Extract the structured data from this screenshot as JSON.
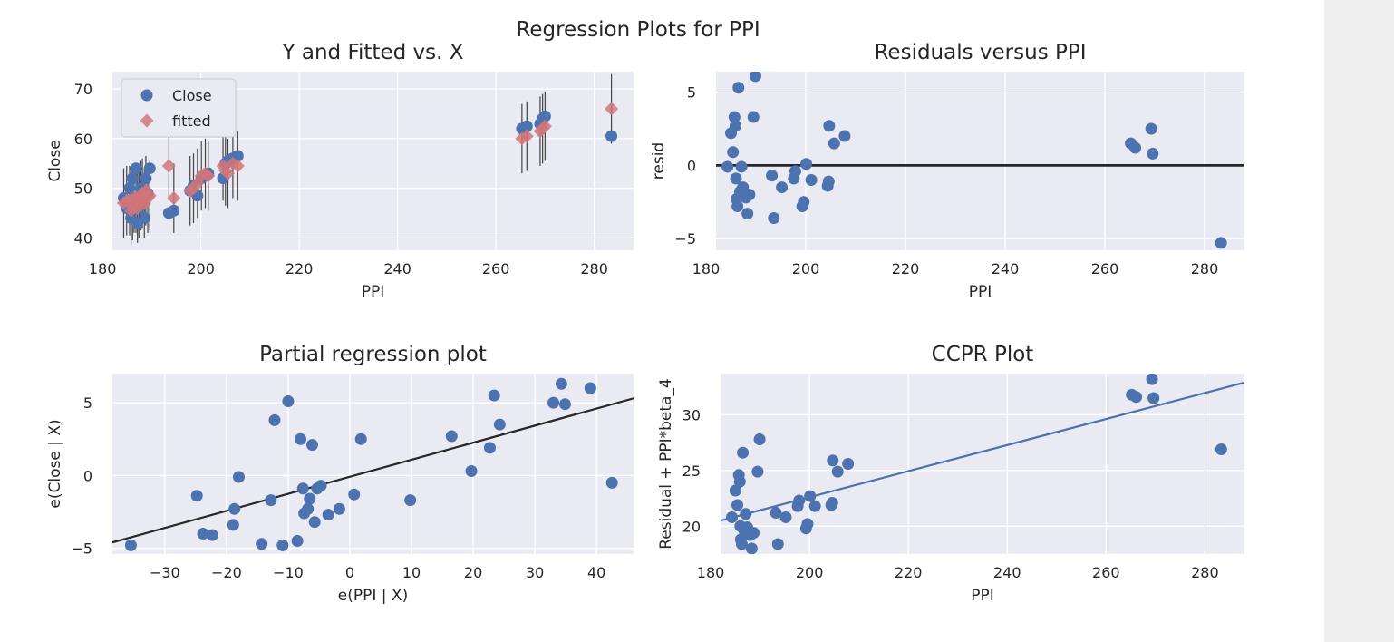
{
  "figure": {
    "suptitle": "Regression Plots for PPI"
  },
  "colors": {
    "blue": "#4c72b0",
    "red": "#dd8452",
    "fitted": "#d0757a",
    "bg": "#eaeaf2",
    "line": "#262626"
  },
  "chart_data": [
    {
      "id": "p1",
      "type": "scatter",
      "title": "Y and Fitted vs. X",
      "xlabel": "PPI",
      "ylabel": "Close",
      "xlim": [
        182,
        288
      ],
      "ylim": [
        37.5,
        73.5
      ],
      "xticks": [
        180,
        200,
        220,
        240,
        260,
        280
      ],
      "yticks": [
        40,
        50,
        60,
        70
      ],
      "legend": {
        "position": "top-left",
        "entries": [
          "Close",
          "fitted"
        ]
      },
      "series": [
        {
          "name": "Close",
          "marker": "circle",
          "points": [
            [
              184.3,
              48
            ],
            [
              184.9,
              46
            ],
            [
              185.5,
              50
            ],
            [
              185.8,
              44
            ],
            [
              186.1,
              52
            ],
            [
              186.4,
              48
            ],
            [
              186.8,
              54
            ],
            [
              187.1,
              43
            ],
            [
              187.4,
              46
            ],
            [
              187.8,
              50
            ],
            [
              188.1,
              48
            ],
            [
              188.5,
              44
            ],
            [
              188.8,
              52
            ],
            [
              189.2,
              49
            ],
            [
              189.6,
              54
            ],
            [
              193.5,
              45
            ],
            [
              194.5,
              45.5
            ],
            [
              197.8,
              49.5
            ],
            [
              198.5,
              50.5
            ],
            [
              199.3,
              48.5
            ],
            [
              200.1,
              52
            ],
            [
              200.9,
              52.5
            ],
            [
              201.5,
              53
            ],
            [
              204.5,
              52
            ],
            [
              205.0,
              55
            ],
            [
              205.5,
              55.5
            ],
            [
              206.5,
              56
            ],
            [
              207.5,
              56.5
            ],
            [
              265.3,
              62
            ],
            [
              266.3,
              62.5
            ],
            [
              269.0,
              63
            ],
            [
              269.5,
              64
            ],
            [
              270.0,
              64.5
            ],
            [
              283.5,
              60.5
            ]
          ]
        },
        {
          "name": "fitted",
          "marker": "diamond",
          "points": [
            [
              184.3,
              47
            ],
            [
              184.9,
              47.5
            ],
            [
              185.5,
              47.5
            ],
            [
              185.8,
              45.5
            ],
            [
              186.1,
              46.5
            ],
            [
              186.4,
              48
            ],
            [
              186.8,
              48
            ],
            [
              187.1,
              46
            ],
            [
              187.4,
              47
            ],
            [
              187.8,
              48.5
            ],
            [
              188.1,
              49
            ],
            [
              188.5,
              47
            ],
            [
              188.8,
              49.5
            ],
            [
              189.2,
              48
            ],
            [
              189.6,
              48.5
            ],
            [
              193.5,
              54.5
            ],
            [
              194.5,
              48
            ],
            [
              197.8,
              49.5
            ],
            [
              198.5,
              50
            ],
            [
              199.3,
              51
            ],
            [
              200.1,
              52.5
            ],
            [
              200.9,
              53
            ],
            [
              201.5,
              52.5
            ],
            [
              204.5,
              54.5
            ],
            [
              205.0,
              53.5
            ],
            [
              205.5,
              53
            ],
            [
              206.5,
              55
            ],
            [
              207.5,
              54.5
            ],
            [
              265.3,
              60
            ],
            [
              266.3,
              60.5
            ],
            [
              269.0,
              61.5
            ],
            [
              269.5,
              62
            ],
            [
              270.0,
              62.5
            ],
            [
              283.5,
              66
            ]
          ]
        }
      ]
    },
    {
      "id": "p2",
      "type": "scatter",
      "title": "Residuals versus PPI",
      "xlabel": "PPI",
      "ylabel": "resid",
      "xlim": [
        182,
        288
      ],
      "ylim": [
        -5.8,
        6.4
      ],
      "xticks": [
        180,
        200,
        220,
        240,
        260,
        280
      ],
      "yticks": [
        -5,
        0,
        5
      ],
      "hline": 0,
      "points": [
        [
          184.3,
          -0.1
        ],
        [
          185.0,
          2.2
        ],
        [
          185.4,
          0.9
        ],
        [
          185.7,
          3.3
        ],
        [
          185.9,
          2.7
        ],
        [
          186.0,
          -0.9
        ],
        [
          186.1,
          -2.3
        ],
        [
          186.3,
          -2.8
        ],
        [
          186.5,
          5.3
        ],
        [
          186.8,
          -1.8
        ],
        [
          187.1,
          -0.1
        ],
        [
          187.4,
          -1.5
        ],
        [
          187.7,
          -1.9
        ],
        [
          188.0,
          -2.2
        ],
        [
          188.3,
          -3.3
        ],
        [
          188.7,
          -2.0
        ],
        [
          189.5,
          3.3
        ],
        [
          189.9,
          6.1
        ],
        [
          193.2,
          -0.7
        ],
        [
          193.6,
          -3.6
        ],
        [
          195.2,
          -1.5
        ],
        [
          197.6,
          -0.9
        ],
        [
          197.9,
          -0.4
        ],
        [
          199.3,
          -2.8
        ],
        [
          199.6,
          -2.5
        ],
        [
          200.1,
          0.1
        ],
        [
          201.1,
          -1.0
        ],
        [
          204.4,
          -1.4
        ],
        [
          204.6,
          -1.1
        ],
        [
          204.7,
          2.7
        ],
        [
          205.7,
          1.5
        ],
        [
          207.8,
          2.0
        ],
        [
          265.2,
          1.5
        ],
        [
          266.1,
          1.2
        ],
        [
          269.3,
          2.5
        ],
        [
          269.6,
          0.8
        ],
        [
          283.3,
          -5.3
        ]
      ]
    },
    {
      "id": "p3",
      "type": "scatter",
      "title": "Partial regression plot",
      "xlabel": "e(PPI | X)",
      "ylabel": "e(Close | X)",
      "xlim": [
        -38.5,
        46
      ],
      "ylim": [
        -5.4,
        7
      ],
      "xticks": [
        -30,
        -20,
        -10,
        0,
        10,
        20,
        30,
        40
      ],
      "yticks": [
        -5,
        0,
        5
      ],
      "fit_line": {
        "x": [
          -38.5,
          46
        ],
        "y": [
          -4.6,
          5.3
        ]
      },
      "points": [
        [
          -35.5,
          -4.8
        ],
        [
          -24.8,
          -1.4
        ],
        [
          -23.8,
          -4.0
        ],
        [
          -22.3,
          -4.1
        ],
        [
          -18.9,
          -3.4
        ],
        [
          -18.7,
          -2.3
        ],
        [
          -18.0,
          -0.1
        ],
        [
          -14.3,
          -4.7
        ],
        [
          -12.8,
          -1.7
        ],
        [
          -12.2,
          3.8
        ],
        [
          -10.9,
          -4.8
        ],
        [
          -10.0,
          5.1
        ],
        [
          -8.5,
          -4.5
        ],
        [
          -8.0,
          2.5
        ],
        [
          -7.6,
          -0.9
        ],
        [
          -7.4,
          -2.6
        ],
        [
          -6.8,
          -2.3
        ],
        [
          -6.5,
          -1.6
        ],
        [
          -6.1,
          2.1
        ],
        [
          -5.7,
          -3.2
        ],
        [
          -5.3,
          -0.9
        ],
        [
          -4.7,
          -0.7
        ],
        [
          -3.5,
          -2.7
        ],
        [
          -1.7,
          -2.3
        ],
        [
          0.7,
          -1.3
        ],
        [
          1.8,
          2.5
        ],
        [
          9.8,
          -1.7
        ],
        [
          16.5,
          2.7
        ],
        [
          19.7,
          0.3
        ],
        [
          22.7,
          1.9
        ],
        [
          23.4,
          5.5
        ],
        [
          24.3,
          3.5
        ],
        [
          33.0,
          5.0
        ],
        [
          34.3,
          6.3
        ],
        [
          34.9,
          4.9
        ],
        [
          39.0,
          6.0
        ],
        [
          42.5,
          -0.5
        ]
      ]
    },
    {
      "id": "p4",
      "type": "scatter",
      "title": "CCPR Plot",
      "xlabel": "PPI",
      "ylabel": "Residual + PPI*beta_4",
      "xlim": [
        182,
        288
      ],
      "ylim": [
        17.5,
        33.7
      ],
      "xticks": [
        180,
        200,
        220,
        240,
        260,
        280
      ],
      "yticks": [
        20,
        25,
        30
      ],
      "fit_line": {
        "x": [
          182,
          288
        ],
        "y": [
          20.5,
          32.9
        ]
      },
      "points": [
        [
          184.3,
          20.8
        ],
        [
          185.0,
          23.2
        ],
        [
          185.4,
          21.9
        ],
        [
          185.7,
          24.6
        ],
        [
          185.9,
          24.0
        ],
        [
          186.0,
          20.0
        ],
        [
          186.1,
          18.8
        ],
        [
          186.3,
          18.4
        ],
        [
          186.5,
          26.6
        ],
        [
          186.8,
          19.6
        ],
        [
          187.1,
          21.1
        ],
        [
          187.4,
          19.9
        ],
        [
          187.7,
          19.5
        ],
        [
          188.0,
          19.2
        ],
        [
          188.3,
          18.0
        ],
        [
          188.7,
          19.4
        ],
        [
          189.5,
          24.9
        ],
        [
          189.9,
          27.8
        ],
        [
          193.2,
          21.2
        ],
        [
          193.6,
          18.4
        ],
        [
          195.2,
          20.8
        ],
        [
          197.6,
          21.8
        ],
        [
          197.9,
          22.3
        ],
        [
          199.3,
          19.8
        ],
        [
          199.6,
          20.2
        ],
        [
          200.1,
          22.7
        ],
        [
          201.1,
          21.8
        ],
        [
          204.4,
          21.9
        ],
        [
          204.6,
          22.1
        ],
        [
          204.7,
          25.9
        ],
        [
          205.7,
          24.9
        ],
        [
          207.8,
          25.6
        ],
        [
          265.2,
          31.8
        ],
        [
          266.1,
          31.6
        ],
        [
          269.3,
          33.2
        ],
        [
          269.6,
          31.5
        ],
        [
          283.3,
          26.9
        ]
      ]
    }
  ]
}
